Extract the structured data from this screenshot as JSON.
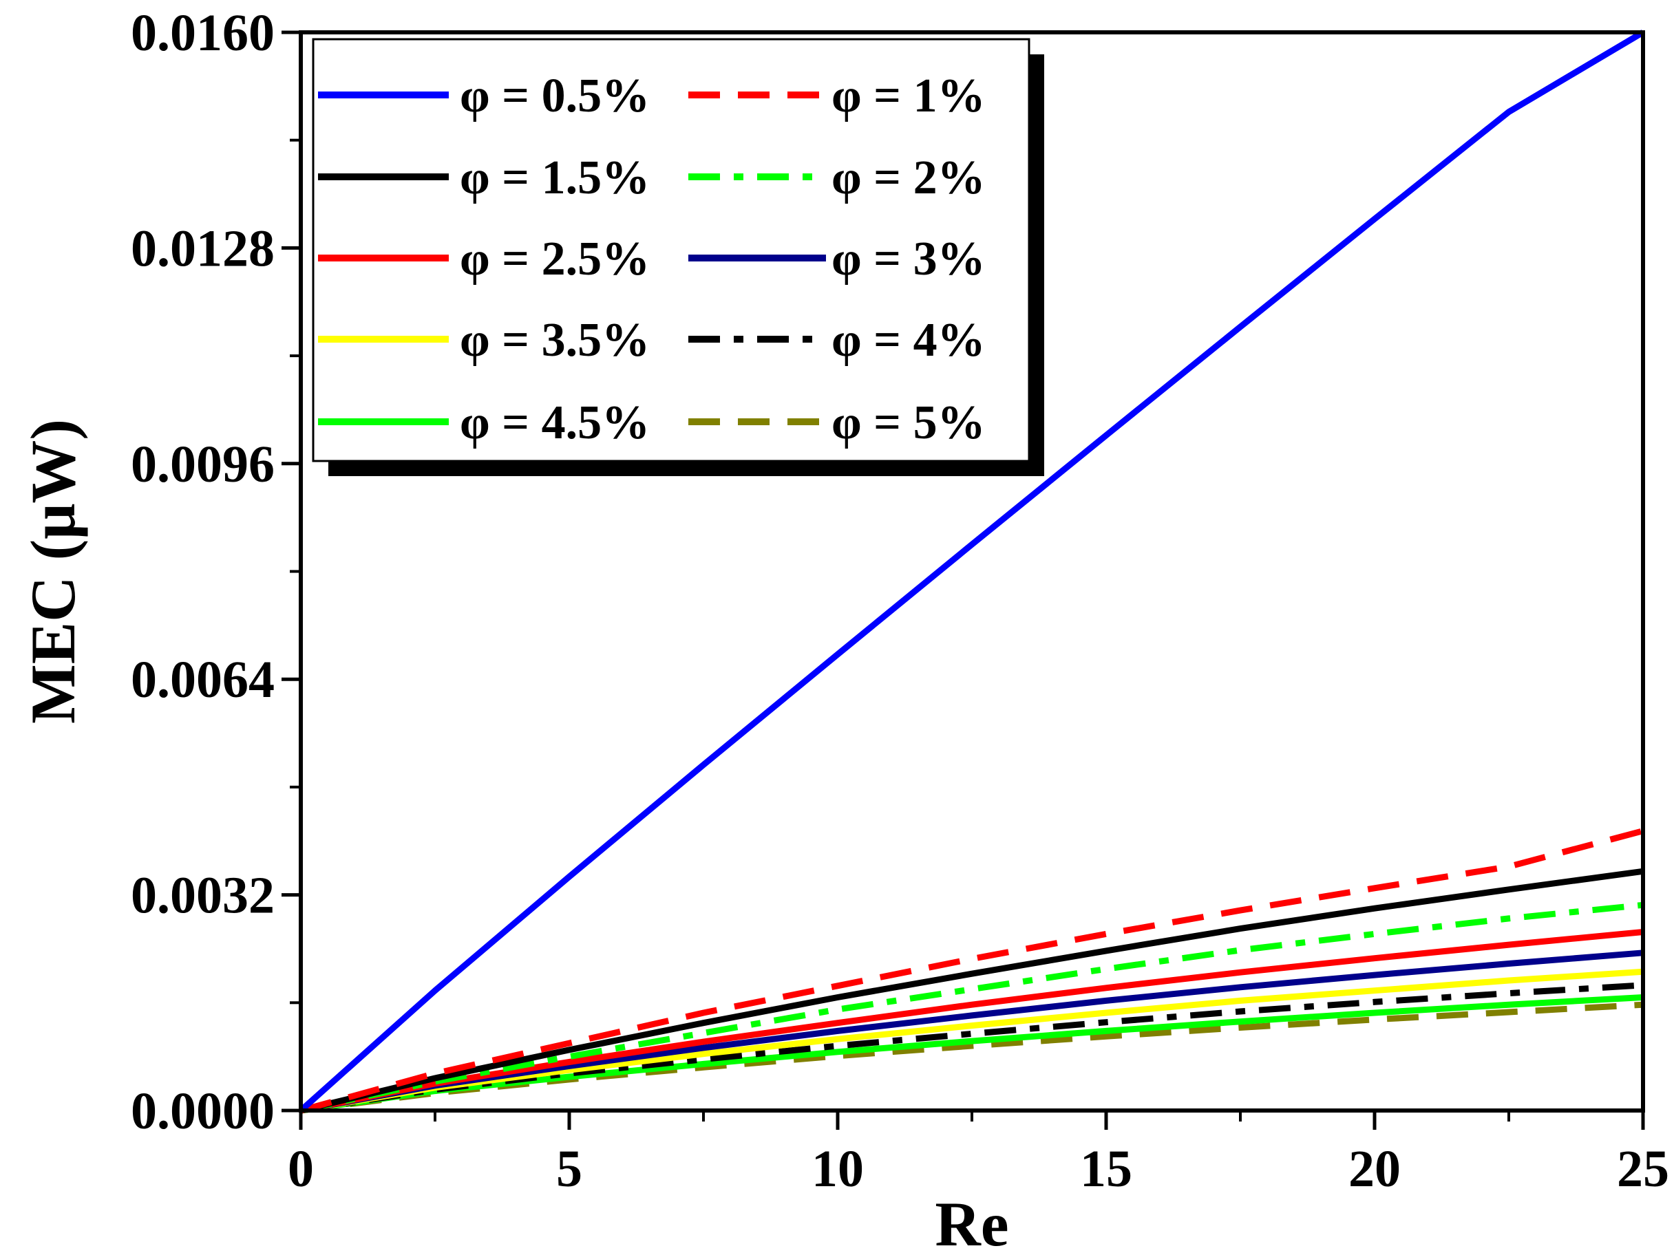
{
  "chart_data": {
    "type": "line",
    "title": "",
    "xlabel": "Re",
    "ylabel": "MEC (μW)",
    "xlim": [
      0,
      25
    ],
    "ylim": [
      0,
      0.016
    ],
    "x_ticks": [
      "0",
      "5",
      "10",
      "15",
      "20",
      "25"
    ],
    "y_ticks": [
      "0.0000",
      "0.0032",
      "0.0064",
      "0.0096",
      "0.0128",
      "0.0160"
    ],
    "grid": false,
    "legend_position": "top-left",
    "x": [
      0,
      2.5,
      5,
      7.5,
      10,
      12.5,
      15,
      17.5,
      20,
      22.5,
      25
    ],
    "series": [
      {
        "name": "φ = 0.5%",
        "color": "#0000ff",
        "style": "solid",
        "values": [
          0,
          0.00178,
          0.00347,
          0.00513,
          0.00677,
          0.0084,
          0.01002,
          0.01163,
          0.01323,
          0.01482,
          0.016
        ]
      },
      {
        "name": "φ = 1%",
        "color": "#ff0000",
        "style": "dash",
        "values": [
          0,
          0.00055,
          0.001,
          0.00145,
          0.00185,
          0.00225,
          0.00262,
          0.00297,
          0.0033,
          0.00362,
          0.00415
        ]
      },
      {
        "name": "φ = 1.5%",
        "color": "#000000",
        "style": "solid",
        "values": [
          0,
          0.00048,
          0.0009,
          0.0013,
          0.00168,
          0.00203,
          0.00237,
          0.0027,
          0.003,
          0.00328,
          0.00355
        ]
      },
      {
        "name": "φ = 2%",
        "color": "#00ff00",
        "style": "dashdot",
        "values": [
          0,
          0.00043,
          0.0008,
          0.00115,
          0.0015,
          0.0018,
          0.0021,
          0.00238,
          0.00262,
          0.00285,
          0.00305
        ]
      },
      {
        "name": "φ = 2.5%",
        "color": "#ff0000",
        "style": "solid",
        "values": [
          0,
          0.0004,
          0.00072,
          0.00102,
          0.0013,
          0.00157,
          0.00182,
          0.00205,
          0.00226,
          0.00246,
          0.00265
        ]
      },
      {
        "name": "φ = 3%",
        "color": "#00008b",
        "style": "solid",
        "values": [
          0,
          0.00037,
          0.00066,
          0.00093,
          0.00118,
          0.00141,
          0.00163,
          0.00183,
          0.00201,
          0.00218,
          0.00234
        ]
      },
      {
        "name": "φ = 3.5%",
        "color": "#ffff00",
        "style": "solid",
        "values": [
          0,
          0.00034,
          0.0006,
          0.00084,
          0.00106,
          0.00126,
          0.00145,
          0.00163,
          0.00178,
          0.00193,
          0.00206
        ]
      },
      {
        "name": "φ = 4%",
        "color": "#000000",
        "style": "dashdot",
        "values": [
          0,
          0.00031,
          0.00055,
          0.00076,
          0.00096,
          0.00114,
          0.00131,
          0.00147,
          0.00161,
          0.00174,
          0.00186
        ]
      },
      {
        "name": "φ = 4.5%",
        "color": "#00ff00",
        "style": "solid",
        "values": [
          0,
          0.00029,
          0.0005,
          0.00069,
          0.00087,
          0.00103,
          0.00118,
          0.00132,
          0.00145,
          0.00157,
          0.00168
        ]
      },
      {
        "name": "φ = 5%",
        "color": "#808000",
        "style": "dash",
        "values": [
          0,
          0.00026,
          0.00046,
          0.00064,
          0.00081,
          0.00096,
          0.0011,
          0.00123,
          0.00135,
          0.00146,
          0.00157
        ]
      }
    ]
  }
}
